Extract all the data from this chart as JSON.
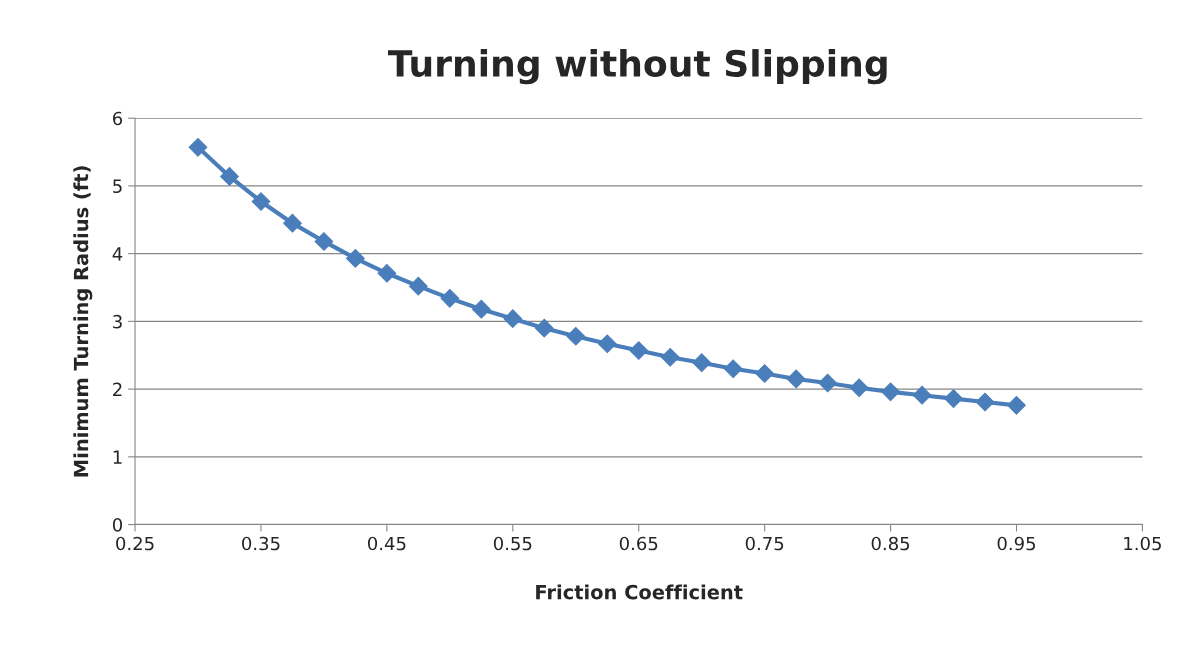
{
  "chart_data": {
    "type": "line",
    "title": "Turning without Slipping",
    "xlabel": "Friction Coefficient",
    "ylabel": "Minimum Turning Radius (ft)",
    "x": [
      0.3,
      0.325,
      0.35,
      0.375,
      0.4,
      0.425,
      0.45,
      0.475,
      0.5,
      0.525,
      0.55,
      0.575,
      0.6,
      0.625,
      0.65,
      0.675,
      0.7,
      0.725,
      0.75,
      0.775,
      0.8,
      0.825,
      0.85,
      0.875,
      0.9,
      0.925,
      0.95
    ],
    "series": [
      {
        "color": "#4a7ebb",
        "values": [
          5.57,
          5.14,
          4.77,
          4.45,
          4.18,
          3.93,
          3.71,
          3.52,
          3.34,
          3.18,
          3.04,
          2.9,
          2.78,
          2.67,
          2.57,
          2.47,
          2.39,
          2.3,
          2.23,
          2.15,
          2.09,
          2.02,
          1.96,
          1.91,
          1.86,
          1.81,
          1.76
        ]
      }
    ],
    "xlim": [
      0.25,
      1.05
    ],
    "xticks": [
      0.25,
      0.35,
      0.45,
      0.55,
      0.65,
      0.75,
      0.85,
      0.95,
      1.05
    ],
    "ylim": [
      0,
      6
    ],
    "yticks": [
      0,
      1,
      2,
      3,
      4,
      5,
      6
    ],
    "grid": "y",
    "marker": "diamond",
    "line_style": "solid"
  }
}
